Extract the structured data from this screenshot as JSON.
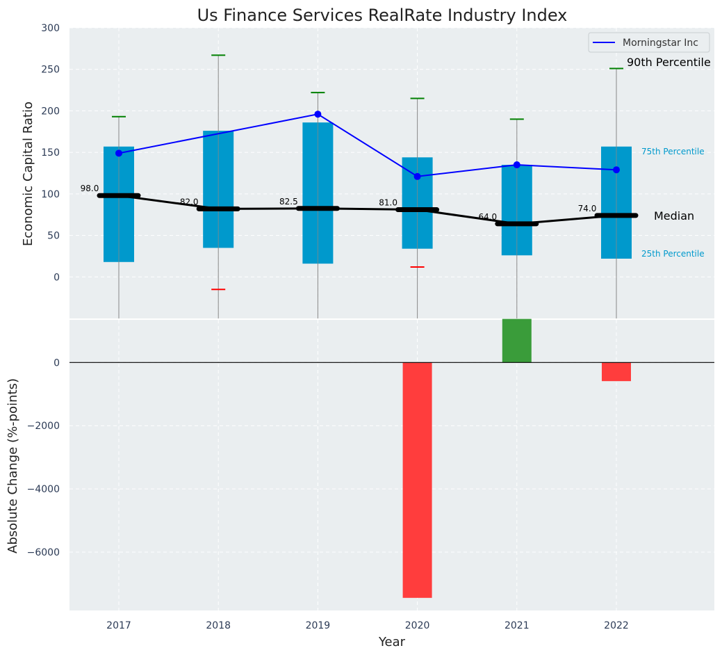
{
  "chart_data": [
    {
      "type": "box",
      "title": "Us Finance Services RealRate Industry Index",
      "xlabel": "",
      "ylabel": "Economic Capital Ratio",
      "ylim": [
        -50,
        300
      ],
      "yticks": [
        0,
        50,
        100,
        150,
        200,
        250,
        300
      ],
      "categories": [
        "2017",
        "2018",
        "2019",
        "2020",
        "2021",
        "2022"
      ],
      "percentile_25": [
        18,
        35,
        16,
        34,
        26,
        22
      ],
      "percentile_75": [
        157,
        176,
        186,
        144,
        135,
        157
      ],
      "median": [
        98.0,
        82.0,
        82.5,
        81.0,
        64.0,
        74.0
      ],
      "median_labels": [
        "98.0",
        "82.0",
        "82.5",
        "81.0",
        "64.0",
        "74.0"
      ],
      "percentile_90": [
        193,
        267,
        222,
        215,
        190,
        251
      ],
      "percentile_10": [
        null,
        -15,
        null,
        12,
        null,
        null
      ],
      "series": [
        {
          "name": "Morningstar Inc",
          "values": [
            149,
            null,
            196,
            121,
            135,
            129
          ],
          "color": "#0000ff"
        }
      ],
      "legend": "Morningstar Inc",
      "legend_position": "top-right",
      "annotations": {
        "p90": "90th Percentile",
        "p75": "75th Percentile",
        "median": "Median",
        "p25": "25th Percentile"
      },
      "colors": {
        "box": "#0099cc",
        "median": "#000000",
        "p90_cap": "#008000",
        "p10_cap": "#ff0000",
        "whisker": "#888888",
        "bg": "#eaeef0"
      }
    },
    {
      "type": "bar",
      "xlabel": "Year",
      "ylabel": "Absolute Change (%-points)",
      "ylim": [
        -7850,
        1350
      ],
      "yticks": [
        0,
        -2000,
        -4000,
        -6000
      ],
      "ytick_labels": [
        "0",
        "−2000",
        "−4000",
        "−6000"
      ],
      "categories": [
        "2017",
        "2018",
        "2019",
        "2020",
        "2021",
        "2022"
      ],
      "values": [
        null,
        null,
        null,
        -7450,
        1380,
        -590
      ],
      "colors": {
        "positive": "#3a9c3a",
        "negative": "#ff3d3d"
      }
    }
  ]
}
